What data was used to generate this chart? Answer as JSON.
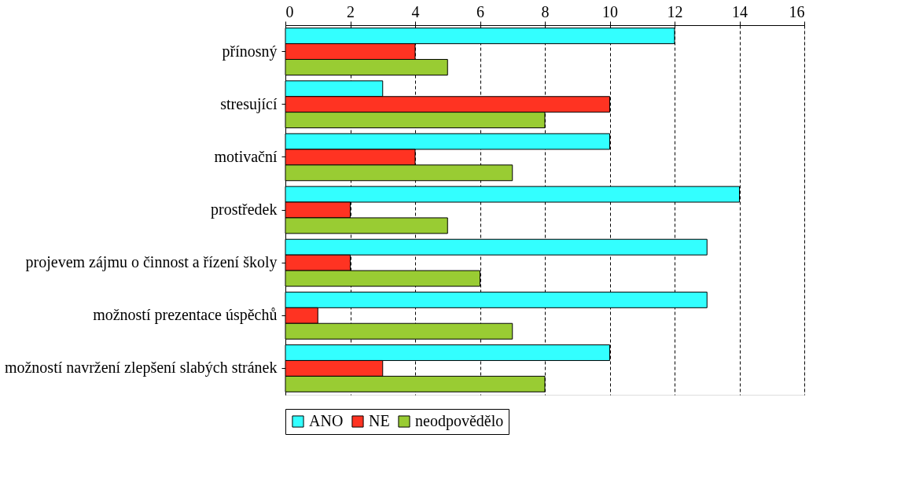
{
  "chart_data": {
    "type": "bar",
    "orientation": "horizontal",
    "categories": [
      "přínosný",
      "stresující",
      "motivační",
      "prostředek",
      "projevem zájmu o činnost a řízení školy",
      "možností prezentace úspěchů",
      "možností navržení zlepšení slabých stránek"
    ],
    "series": [
      {
        "name": "ANO",
        "color": "#33ffff",
        "values": [
          12,
          3,
          10,
          14,
          13,
          13,
          10
        ]
      },
      {
        "name": "NE",
        "color": "#ff3322",
        "values": [
          4,
          10,
          4,
          2,
          2,
          1,
          3
        ]
      },
      {
        "name": "neodpovědělo",
        "color": "#99cc33",
        "values": [
          5,
          8,
          7,
          5,
          6,
          7,
          8
        ]
      }
    ],
    "xlim": [
      0,
      16
    ],
    "xticks": [
      0,
      2,
      4,
      6,
      8,
      10,
      12,
      14,
      16
    ],
    "grid": "x",
    "line_style": "dashed",
    "legend": "bottom"
  }
}
